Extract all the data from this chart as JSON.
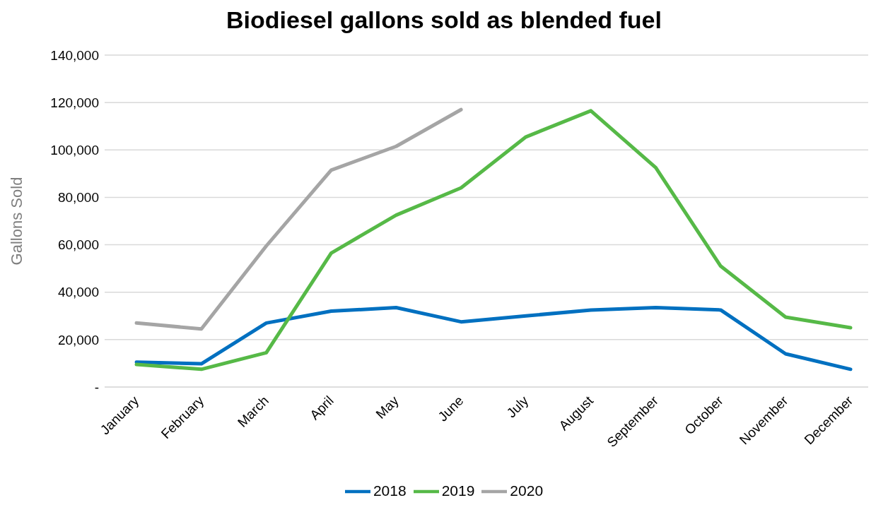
{
  "chart_data": {
    "type": "line",
    "title": "Biodiesel gallons sold as blended fuel",
    "ylabel": "Gallons Sold",
    "categories": [
      "January",
      "February",
      "March",
      "April",
      "May",
      "June",
      "July",
      "August",
      "September",
      "October",
      "November",
      "December"
    ],
    "series": [
      {
        "name": "2018",
        "color": "#0070c0",
        "values": [
          10500,
          9800,
          27000,
          32000,
          33500,
          27500,
          30000,
          32500,
          33500,
          32500,
          14000,
          7500
        ]
      },
      {
        "name": "2019",
        "color": "#56b947",
        "values": [
          9500,
          7500,
          14500,
          56500,
          72500,
          84000,
          105500,
          116500,
          92500,
          51000,
          29500,
          25000
        ]
      },
      {
        "name": "2020",
        "color": "#a5a5a5",
        "values": [
          27000,
          24500,
          59500,
          91500,
          101500,
          117000,
          null,
          null,
          null,
          null,
          null,
          null
        ]
      }
    ],
    "ylim": [
      0,
      140000
    ],
    "yticks": [
      {
        "value": 0,
        "label": "-"
      },
      {
        "value": 20000,
        "label": "20,000"
      },
      {
        "value": 40000,
        "label": "40,000"
      },
      {
        "value": 60000,
        "label": "60,000"
      },
      {
        "value": 80000,
        "label": "80,000"
      },
      {
        "value": 100000,
        "label": "100,000"
      },
      {
        "value": 120000,
        "label": "120,000"
      },
      {
        "value": 140000,
        "label": "140,000"
      }
    ],
    "grid": "y",
    "legend": "bottom",
    "marker": "none",
    "line_style": "solid"
  }
}
